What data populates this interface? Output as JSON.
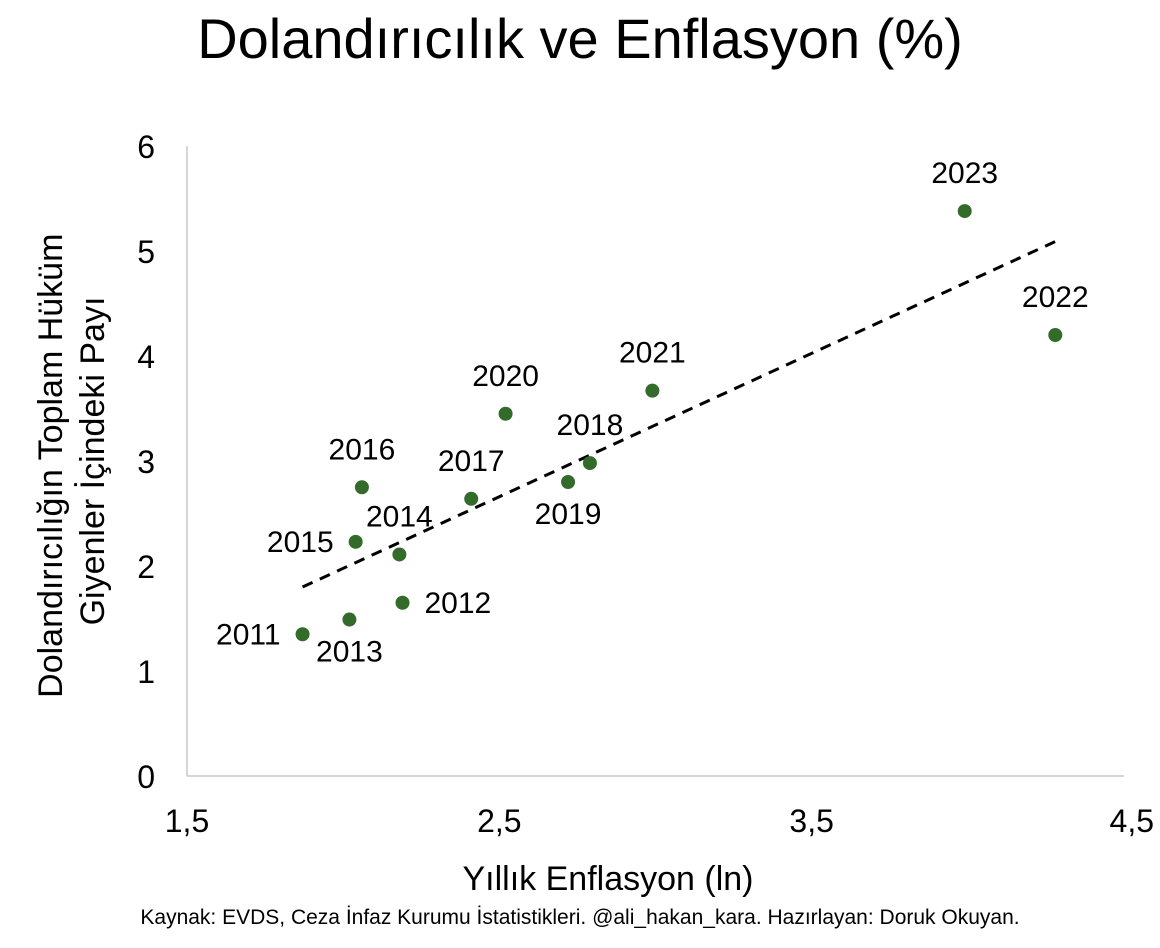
{
  "chart_data": {
    "type": "scatter",
    "title": "Dolandırıcılık ve Enflasyon (%)",
    "xlabel": "Yıllık Enflasyon (ln)",
    "ylabel_lines": [
      "Dolandırıcılığın Toplam Hüküm",
      "Giyenler İçindeki Payı"
    ],
    "xlim": [
      1.5,
      4.5
    ],
    "ylim": [
      0,
      6
    ],
    "x_ticks": [
      1.5,
      2.5,
      3.5,
      4.5
    ],
    "x_tick_labels": [
      "1,5",
      "2,5",
      "3,5",
      "4,5"
    ],
    "y_ticks": [
      0,
      1,
      2,
      3,
      4,
      5,
      6
    ],
    "y_tick_labels": [
      "0",
      "1",
      "2",
      "3",
      "4",
      "5",
      "6"
    ],
    "grid": false,
    "legend": "none",
    "marker_color": "#336b2b",
    "trendline": {
      "style": "dashed",
      "color": "#000000",
      "x": [
        1.87,
        4.28
      ],
      "y": [
        1.8,
        5.09
      ]
    },
    "points": [
      {
        "label": "2011",
        "x": 1.87,
        "y": 1.35,
        "label_pos": "left"
      },
      {
        "label": "2012",
        "x": 2.19,
        "y": 1.65,
        "label_pos": "right"
      },
      {
        "label": "2013",
        "x": 2.02,
        "y": 1.49,
        "label_pos": "below"
      },
      {
        "label": "2014",
        "x": 2.18,
        "y": 2.11,
        "label_pos": "above"
      },
      {
        "label": "2015",
        "x": 2.04,
        "y": 2.23,
        "label_pos": "left"
      },
      {
        "label": "2016",
        "x": 2.06,
        "y": 2.75,
        "label_pos": "above"
      },
      {
        "label": "2017",
        "x": 2.41,
        "y": 2.64,
        "label_pos": "above"
      },
      {
        "label": "2018",
        "x": 2.79,
        "y": 2.98,
        "label_pos": "above"
      },
      {
        "label": "2019",
        "x": 2.72,
        "y": 2.8,
        "label_pos": "below"
      },
      {
        "label": "2020",
        "x": 2.52,
        "y": 3.45,
        "label_pos": "above"
      },
      {
        "label": "2021",
        "x": 2.99,
        "y": 3.67,
        "label_pos": "above"
      },
      {
        "label": "2022",
        "x": 4.28,
        "y": 4.2,
        "label_pos": "above"
      },
      {
        "label": "2023",
        "x": 3.99,
        "y": 5.38,
        "label_pos": "above"
      }
    ]
  },
  "source": "Kaynak: EVDS, Ceza İnfaz Kurumu İstatistikleri. @ali_hakan_kara. Hazırlayan: Doruk Okuyan."
}
